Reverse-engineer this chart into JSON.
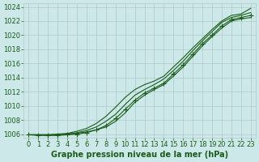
{
  "xlabel": "Graphe pression niveau de la mer (hPa)",
  "ylim": [
    1005.5,
    1024.5
  ],
  "xlim": [
    -0.5,
    23.5
  ],
  "yticks": [
    1006,
    1008,
    1010,
    1012,
    1014,
    1016,
    1018,
    1020,
    1022,
    1024
  ],
  "xticks": [
    0,
    1,
    2,
    3,
    4,
    5,
    6,
    7,
    8,
    9,
    10,
    11,
    12,
    13,
    14,
    15,
    16,
    17,
    18,
    19,
    20,
    21,
    22,
    23
  ],
  "background_color": "#cde8e8",
  "grid_color": "#b0c8c8",
  "line_color": "#1a5c1a",
  "series": [
    [
      1005.9,
      1005.9,
      1005.9,
      1005.9,
      1006.0,
      1006.1,
      1006.3,
      1006.6,
      1007.0,
      1007.8,
      1009.0,
      1010.5,
      1011.5,
      1012.3,
      1013.0,
      1014.2,
      1015.5,
      1017.0,
      1018.5,
      1019.8,
      1021.0,
      1022.0,
      1022.3,
      1022.5
    ],
    [
      1005.9,
      1005.9,
      1005.9,
      1005.9,
      1006.0,
      1006.2,
      1006.5,
      1007.0,
      1007.8,
      1008.8,
      1010.2,
      1011.5,
      1012.3,
      1013.0,
      1013.8,
      1015.0,
      1016.3,
      1017.8,
      1019.2,
      1020.5,
      1021.8,
      1022.5,
      1022.8,
      1023.2
    ],
    [
      1005.9,
      1005.9,
      1005.9,
      1006.0,
      1006.1,
      1006.4,
      1006.8,
      1007.5,
      1008.5,
      1009.8,
      1011.2,
      1012.3,
      1013.0,
      1013.5,
      1014.2,
      1015.5,
      1016.8,
      1018.2,
      1019.5,
      1020.8,
      1022.0,
      1022.8,
      1023.0,
      1023.8
    ],
    [
      1005.9,
      1005.8,
      1005.8,
      1005.8,
      1005.9,
      1006.0,
      1006.2,
      1006.6,
      1007.2,
      1008.2,
      1009.5,
      1010.8,
      1011.8,
      1012.5,
      1013.2,
      1014.5,
      1015.8,
      1017.3,
      1018.8,
      1020.0,
      1021.3,
      1022.2,
      1022.5,
      1022.8
    ]
  ],
  "marker_series_index": 3,
  "marker": "+",
  "marker_size": 5.0,
  "marker_color": "#1a5c1a",
  "linewidth": 0.8,
  "font_color": "#1a5c1a",
  "tick_fontsize": 6.0,
  "xlabel_fontsize": 7.0
}
